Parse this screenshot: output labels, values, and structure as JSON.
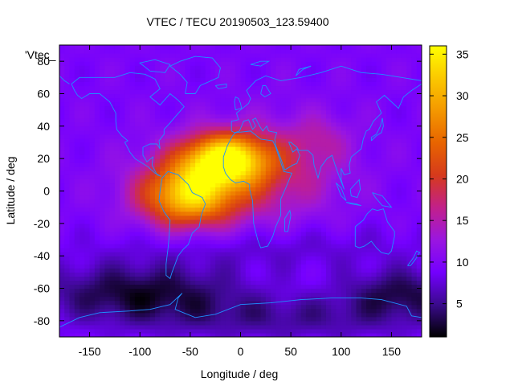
{
  "chart_data": {
    "type": "heatmap",
    "title": "VTEC / TECU 20190503_123.59400",
    "xlabel": "Longitude / deg",
    "ylabel": "Latitude / deg",
    "xlim": [
      -180,
      180
    ],
    "ylim": [
      -90,
      90
    ],
    "x_ticks": [
      -150,
      -100,
      -50,
      0,
      50,
      100,
      150
    ],
    "y_ticks": [
      -80,
      -60,
      -40,
      -20,
      0,
      20,
      40,
      60,
      80
    ],
    "colorbar": {
      "range": [
        1,
        36
      ],
      "ticks": [
        5,
        10,
        15,
        20,
        25,
        30,
        35
      ],
      "palette": [
        "#000000",
        "#3a0a8c",
        "#7400ff",
        "#9a16e0",
        "#c2208a",
        "#d63a1c",
        "#e86400",
        "#f49800",
        "#fbc800",
        "#ffff00"
      ]
    },
    "legend_label": "'Vtec_",
    "legend_position": "top-left",
    "overlay": "coastlines",
    "overlay_color": "#1e90ff",
    "grid": false,
    "maxima": [
      {
        "lon": -15,
        "lat": 20,
        "value": 36
      },
      {
        "lon": -55,
        "lat": -5,
        "value": 33
      },
      {
        "lon": -40,
        "lat": -8,
        "value": 30
      }
    ]
  }
}
